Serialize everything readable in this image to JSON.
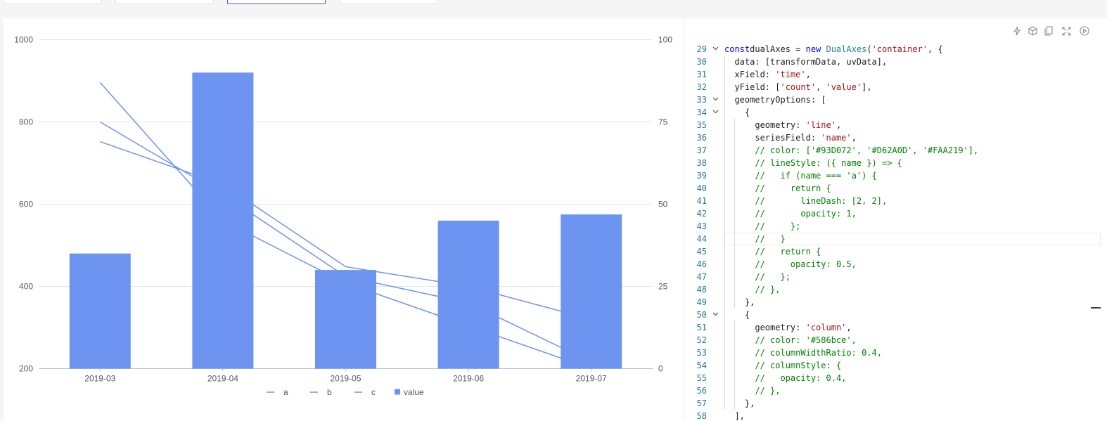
{
  "tabs": [
    {
      "label": "",
      "active": false
    },
    {
      "label": "",
      "active": false
    },
    {
      "label": "",
      "active": true
    },
    {
      "label": "",
      "active": false
    }
  ],
  "chart_data": {
    "type": "dual-axes (column + line)",
    "categories": [
      "2019-03",
      "2019-04",
      "2019-05",
      "2019-06",
      "2019-07"
    ],
    "left_axis": {
      "ticks": [
        "1000",
        "800",
        "600",
        "400",
        "200"
      ],
      "ylim": [
        200,
        1000
      ]
    },
    "right_axis": {
      "ticks": [
        "100",
        "75",
        "50",
        "25",
        "0"
      ],
      "ylim": [
        0,
        100
      ]
    },
    "column_series": {
      "name": "value",
      "values": [
        480,
        920,
        440,
        560,
        575
      ],
      "color": "#6d94f0"
    },
    "line_series": [
      {
        "name": "a",
        "values": [
          87,
          45,
          26,
          13,
          0
        ],
        "color": "#6d94f0"
      },
      {
        "name": "b",
        "values": [
          75,
          53,
          28,
          20,
          2
        ],
        "color": "#6d94f0"
      },
      {
        "name": "c",
        "values": [
          69,
          56,
          31,
          25,
          15
        ],
        "color": "#6d94f0"
      }
    ],
    "legend": {
      "position": "bottom",
      "items": [
        "a",
        "b",
        "c",
        "value"
      ]
    },
    "grid": true
  },
  "toolbar_icons": [
    "lightning-icon",
    "cube-icon",
    "copy-icon",
    "expand-icon",
    "play-icon"
  ],
  "editor": {
    "highlight_line": 44,
    "lines": [
      {
        "n": "29",
        "fold": true,
        "segs": [
          [
            "kw",
            "const"
          ],
          [
            "",
            "dualAxes = "
          ],
          [
            "kw",
            "new"
          ],
          [
            "",
            ""
          ],
          [
            "cls",
            " DualAxes"
          ],
          [
            "",
            "("
          ],
          [
            "str",
            "'container'"
          ],
          [
            "",
            ", {"
          ]
        ]
      },
      {
        "n": "30",
        "fold": false,
        "segs": [
          [
            "",
            "  data: [transformData, uvData],"
          ]
        ]
      },
      {
        "n": "31",
        "fold": false,
        "segs": [
          [
            "",
            "  xField: "
          ],
          [
            "str",
            "'time'"
          ],
          [
            "",
            ","
          ]
        ]
      },
      {
        "n": "32",
        "fold": false,
        "segs": [
          [
            "",
            "  yField: ["
          ],
          [
            "str",
            "'count'"
          ],
          [
            "",
            ", "
          ],
          [
            "str",
            "'value'"
          ],
          [
            "",
            "],"
          ]
        ]
      },
      {
        "n": "33",
        "fold": true,
        "segs": [
          [
            "",
            "  geometryOptions: ["
          ]
        ]
      },
      {
        "n": "34",
        "fold": true,
        "segs": [
          [
            "",
            "    {"
          ]
        ]
      },
      {
        "n": "35",
        "fold": false,
        "segs": [
          [
            "",
            "      geometry: "
          ],
          [
            "str",
            "'line'"
          ],
          [
            "",
            ","
          ]
        ]
      },
      {
        "n": "36",
        "fold": false,
        "segs": [
          [
            "",
            "      seriesField: "
          ],
          [
            "str",
            "'name'"
          ],
          [
            "",
            ","
          ]
        ]
      },
      {
        "n": "37",
        "fold": false,
        "segs": [
          [
            "cmt",
            "      // color: ['#93D072', '#D62A0D', '#FAA219'],"
          ]
        ]
      },
      {
        "n": "38",
        "fold": false,
        "segs": [
          [
            "cmt",
            "      // lineStyle: ({ name }) => {"
          ]
        ]
      },
      {
        "n": "39",
        "fold": false,
        "segs": [
          [
            "cmt",
            "      //   if (name === 'a') {"
          ]
        ]
      },
      {
        "n": "40",
        "fold": false,
        "segs": [
          [
            "cmt",
            "      //     return {"
          ]
        ]
      },
      {
        "n": "41",
        "fold": false,
        "segs": [
          [
            "cmt",
            "      //       lineDash: [2, 2],"
          ]
        ]
      },
      {
        "n": "42",
        "fold": false,
        "segs": [
          [
            "cmt",
            "      //       opacity: 1,"
          ]
        ]
      },
      {
        "n": "43",
        "fold": false,
        "segs": [
          [
            "cmt",
            "      //     };"
          ]
        ]
      },
      {
        "n": "44",
        "fold": false,
        "segs": [
          [
            "cmt",
            "      //   }"
          ]
        ]
      },
      {
        "n": "45",
        "fold": false,
        "segs": [
          [
            "cmt",
            "      //   return {"
          ]
        ]
      },
      {
        "n": "46",
        "fold": false,
        "segs": [
          [
            "cmt",
            "      //     opacity: 0.5,"
          ]
        ]
      },
      {
        "n": "47",
        "fold": false,
        "segs": [
          [
            "cmt",
            "      //   };"
          ]
        ]
      },
      {
        "n": "48",
        "fold": false,
        "segs": [
          [
            "cmt",
            "      // },"
          ]
        ]
      },
      {
        "n": "49",
        "fold": false,
        "segs": [
          [
            "",
            "    },"
          ]
        ]
      },
      {
        "n": "50",
        "fold": true,
        "segs": [
          [
            "",
            "    {"
          ]
        ]
      },
      {
        "n": "51",
        "fold": false,
        "segs": [
          [
            "",
            "      geometry: "
          ],
          [
            "str",
            "'column'"
          ],
          [
            "",
            ","
          ]
        ]
      },
      {
        "n": "52",
        "fold": false,
        "segs": [
          [
            "cmt",
            "      // color: '#586bce',"
          ]
        ]
      },
      {
        "n": "53",
        "fold": false,
        "segs": [
          [
            "cmt",
            "      // columnWidthRatio: 0.4,"
          ]
        ]
      },
      {
        "n": "54",
        "fold": false,
        "segs": [
          [
            "cmt",
            "      // columnStyle: {"
          ]
        ]
      },
      {
        "n": "55",
        "fold": false,
        "segs": [
          [
            "cmt",
            "      //   opacity: 0.4,"
          ]
        ]
      },
      {
        "n": "56",
        "fold": false,
        "segs": [
          [
            "cmt",
            "      // },"
          ]
        ]
      },
      {
        "n": "57",
        "fold": false,
        "segs": [
          [
            "",
            "    },"
          ]
        ]
      },
      {
        "n": "58",
        "fold": false,
        "segs": [
          [
            "",
            "  ],"
          ]
        ]
      }
    ]
  }
}
